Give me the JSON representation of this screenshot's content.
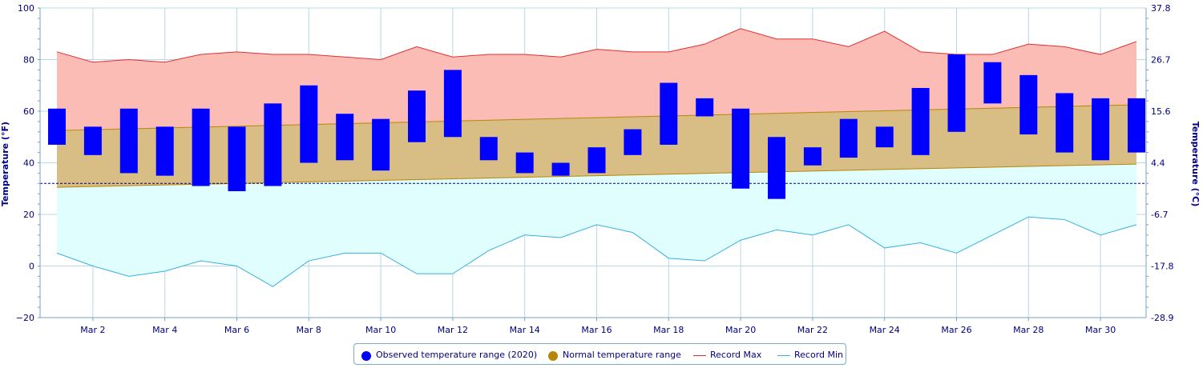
{
  "chart_data": {
    "type": "bar",
    "x_categories": [
      "Mar 1",
      "Mar 2",
      "Mar 3",
      "Mar 4",
      "Mar 5",
      "Mar 6",
      "Mar 7",
      "Mar 8",
      "Mar 9",
      "Mar 10",
      "Mar 11",
      "Mar 12",
      "Mar 13",
      "Mar 14",
      "Mar 15",
      "Mar 16",
      "Mar 17",
      "Mar 18",
      "Mar 19",
      "Mar 20",
      "Mar 21",
      "Mar 22",
      "Mar 23",
      "Mar 24",
      "Mar 25",
      "Mar 26",
      "Mar 27",
      "Mar 28",
      "Mar 29",
      "Mar 30",
      "Mar 31"
    ],
    "x_tick_labels": [
      "Mar 2",
      "Mar 4",
      "Mar 6",
      "Mar 8",
      "Mar 10",
      "Mar 12",
      "Mar 14",
      "Mar 16",
      "Mar 18",
      "Mar 20",
      "Mar 22",
      "Mar 24",
      "Mar 26",
      "Mar 28",
      "Mar 30"
    ],
    "ylabel_left": "Temperature (°F)",
    "ylabel_right": "Temperature (°C)",
    "ylim": [
      -20,
      100
    ],
    "y_ticks_left": [
      "100",
      "80",
      "60",
      "40",
      "20",
      "0",
      "−20"
    ],
    "y_ticks_right": [
      "37.8",
      "26.7",
      "15.6",
      "4.4",
      "-6.7",
      "-17.8",
      "-28.9"
    ],
    "freezing_line": 32,
    "grid": true,
    "legend_position": "bottom",
    "series": [
      {
        "name": "Observed temperature range (2020)",
        "kind": "range-bar",
        "color": "#0000ff",
        "low": [
          47,
          43,
          36,
          35,
          31,
          29,
          31,
          40,
          41,
          37,
          48,
          50,
          41,
          36,
          35,
          36,
          43,
          47,
          58,
          30,
          26,
          39,
          42,
          46,
          43,
          52,
          63,
          51,
          44,
          41,
          44
        ],
        "high": [
          61,
          54,
          61,
          54,
          61,
          54,
          63,
          70,
          59,
          57,
          68,
          76,
          50,
          44,
          40,
          46,
          53,
          71,
          65,
          61,
          50,
          46,
          57,
          54,
          69,
          82,
          79,
          74,
          67,
          65,
          65
        ]
      },
      {
        "name": "Normal temperature range",
        "kind": "area-range",
        "color": "#b8860b",
        "low_start": 30.5,
        "low_end": 39.5,
        "high_start": 52.5,
        "high_end": 62.5
      },
      {
        "name": "Record Max",
        "kind": "line",
        "color": "#e03030",
        "values": [
          83,
          79,
          80,
          79,
          82,
          83,
          82,
          82,
          81,
          80,
          85,
          81,
          82,
          82,
          81,
          84,
          83,
          83,
          86,
          92,
          88,
          88,
          85,
          91,
          83,
          82,
          82,
          86,
          85,
          82,
          87
        ]
      },
      {
        "name": "Record Min",
        "kind": "line",
        "color": "#3ab0e0",
        "values": [
          5,
          0,
          -4,
          -2,
          2,
          0,
          -8,
          2,
          5,
          5,
          -3,
          -3,
          6,
          12,
          11,
          16,
          13,
          3,
          2,
          10,
          14,
          12,
          16,
          7,
          9,
          5,
          12,
          19,
          18,
          12,
          16
        ]
      }
    ]
  }
}
